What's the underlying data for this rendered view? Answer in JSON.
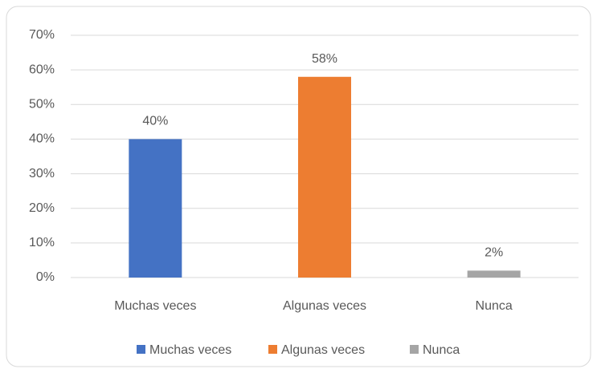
{
  "chart_data": {
    "type": "bar",
    "categories": [
      "Muchas veces",
      "Algunas veces",
      "Nunca"
    ],
    "values": [
      40,
      58,
      2
    ],
    "value_labels": [
      "40%",
      "58%",
      "2%"
    ],
    "colors": [
      "#4472c4",
      "#ed7d31",
      "#a5a5a5"
    ],
    "ylim": [
      0,
      70
    ],
    "yticks": [
      {
        "value": 0,
        "label": "0%"
      },
      {
        "value": 10,
        "label": "10%"
      },
      {
        "value": 20,
        "label": "20%"
      },
      {
        "value": 30,
        "label": "30%"
      },
      {
        "value": 40,
        "label": "40%"
      },
      {
        "value": 50,
        "label": "50%"
      },
      {
        "value": 60,
        "label": "60%"
      },
      {
        "value": 70,
        "label": "70%"
      }
    ],
    "grid": true,
    "legend": "bottom"
  }
}
